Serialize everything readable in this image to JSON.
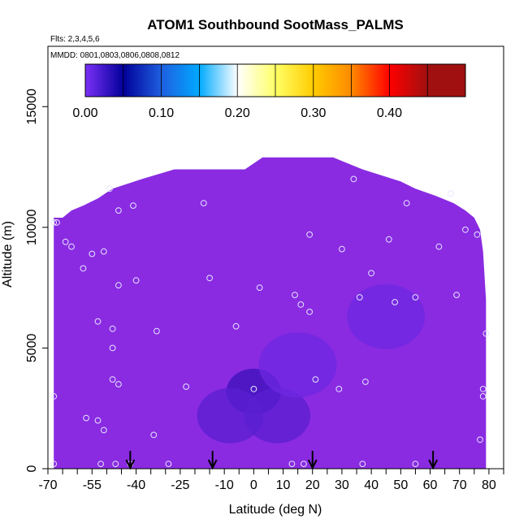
{
  "chart_data": {
    "type": "heatmap",
    "title": "ATOM1 Southbound SootMass_PALMS",
    "subtitle_flights": "Flts: 2,3,4,5,6",
    "subtitle_dates": "MMDD: 0801,0803,0806,0808,0812",
    "xlabel": "Latitude (deg N)",
    "ylabel": "Altitude (m)",
    "xlim": [
      -70,
      85
    ],
    "ylim": [
      0,
      17500
    ],
    "x_tick_labels": [
      "-70",
      "-55",
      "-40",
      "-25",
      "-10",
      "0",
      "10",
      "20",
      "30",
      "40",
      "50",
      "60",
      "70",
      "80"
    ],
    "x_ticks_all": [
      -70,
      -65,
      -60,
      -55,
      -50,
      -45,
      -40,
      -35,
      -30,
      -25,
      -20,
      -15,
      -10,
      -5,
      0,
      5,
      10,
      15,
      20,
      25,
      30,
      35,
      40,
      45,
      50,
      55,
      60,
      65,
      70,
      75,
      80,
      85
    ],
    "y_tick_labels": [
      "0",
      "5000",
      "10000",
      "15000"
    ],
    "colorbar": {
      "range": [
        0,
        0.5
      ],
      "tick_labels": [
        "0.00",
        "0.10",
        "0.20",
        "0.30",
        "0.40"
      ],
      "colors": [
        "#7b2ff7",
        "#000099",
        "#1f5fe0",
        "#00aaff",
        "#ffffff",
        "#ffff66",
        "#ffcc00",
        "#ff8800",
        "#ff0000",
        "#a01010"
      ]
    },
    "background_value": 0.02,
    "background_color": "#8a2be2",
    "envelope": [
      [
        -68,
        0,
        10400
      ],
      [
        -65,
        0,
        10400
      ],
      [
        -62,
        0,
        10700
      ],
      [
        -58,
        0,
        10900
      ],
      [
        -53,
        0,
        11200
      ],
      [
        -48,
        0,
        11600
      ],
      [
        -38,
        0,
        12000
      ],
      [
        -27,
        0,
        12400
      ],
      [
        -15,
        0,
        12400
      ],
      [
        -3,
        0,
        12400
      ],
      [
        3,
        0,
        12900
      ],
      [
        15,
        0,
        12900
      ],
      [
        27,
        0,
        12900
      ],
      [
        37,
        0,
        12400
      ],
      [
        50,
        0,
        11900
      ],
      [
        55,
        0,
        11600
      ],
      [
        62,
        0,
        11300
      ],
      [
        68,
        0,
        11000
      ],
      [
        72,
        0,
        10700
      ],
      [
        75,
        0,
        10400
      ],
      [
        77,
        0,
        9900
      ],
      [
        78,
        0,
        9000
      ],
      [
        79,
        0,
        7000
      ]
    ],
    "low_anomaly": [
      {
        "lat": 0,
        "alt": 3200,
        "value": 0.005
      },
      {
        "lat": -8,
        "alt": 2200,
        "value": 0.01
      },
      {
        "lat": 8,
        "alt": 2200,
        "value": 0.01
      },
      {
        "lat": 15,
        "alt": 4300,
        "value": 0.012
      },
      {
        "lat": 45,
        "alt": 6300,
        "value": 0.015
      }
    ],
    "sample_points": [
      [
        -68,
        10200
      ],
      [
        -67,
        10200
      ],
      [
        -64,
        9400
      ],
      [
        -62,
        9200
      ],
      [
        -58,
        8300
      ],
      [
        -55,
        8900
      ],
      [
        -51,
        9000
      ],
      [
        -49,
        11600
      ],
      [
        -46,
        10700
      ],
      [
        -41,
        10900
      ],
      [
        -46,
        7600
      ],
      [
        -40,
        7800
      ],
      [
        -53,
        6100
      ],
      [
        -48,
        5800
      ],
      [
        -48,
        5000
      ],
      [
        -48,
        3700
      ],
      [
        -46,
        3500
      ],
      [
        -33,
        5700
      ],
      [
        -23,
        3400
      ],
      [
        -34,
        1400
      ],
      [
        -17,
        11000
      ],
      [
        -15,
        7900
      ],
      [
        -6,
        5900
      ],
      [
        0,
        3300
      ],
      [
        2,
        7500
      ],
      [
        14,
        7200
      ],
      [
        16,
        6800
      ],
      [
        19,
        6500
      ],
      [
        19,
        9700
      ],
      [
        21,
        3700
      ],
      [
        29,
        3300
      ],
      [
        30,
        9100
      ],
      [
        34,
        12000
      ],
      [
        36,
        7100
      ],
      [
        38,
        3600
      ],
      [
        40,
        8100
      ],
      [
        46,
        9500
      ],
      [
        48,
        6900
      ],
      [
        52,
        11000
      ],
      [
        55,
        7100
      ],
      [
        63,
        9200
      ],
      [
        67,
        11400
      ],
      [
        69,
        7200
      ],
      [
        72,
        9900
      ],
      [
        76,
        9700
      ],
      [
        79,
        5600
      ],
      [
        78,
        3300
      ],
      [
        78,
        3000
      ],
      [
        77,
        1200
      ],
      [
        -68,
        3000
      ],
      [
        -57,
        2100
      ],
      [
        -53,
        2000
      ],
      [
        -51,
        1600
      ],
      [
        -68,
        200
      ],
      [
        -52,
        200
      ],
      [
        -47,
        200
      ],
      [
        -42,
        200
      ],
      [
        -29,
        200
      ],
      [
        13,
        200
      ],
      [
        17,
        200
      ],
      [
        37,
        200
      ],
      [
        55,
        200
      ]
    ],
    "arrows_lat": [
      -42,
      -14,
      20,
      61
    ],
    "grid": false,
    "legend": "top-inside colorbar"
  }
}
